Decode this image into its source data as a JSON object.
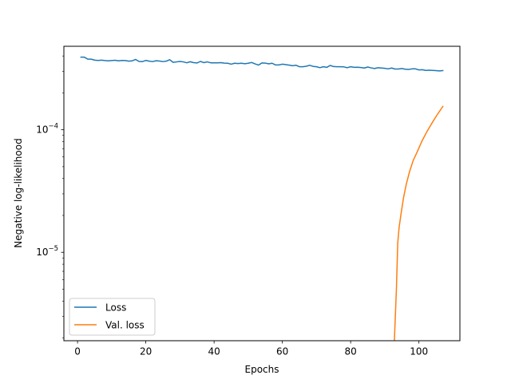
{
  "chart_data": {
    "type": "line",
    "xlabel": "Epochs",
    "ylabel": "Negative log-likelihood",
    "xlim": [
      -4,
      112
    ],
    "ylim": [
      1.9e-06,
      0.00048
    ],
    "yscale": "log",
    "grid": false,
    "legend_position": "lower-left",
    "x_ticks": [
      0,
      20,
      40,
      60,
      80,
      100
    ],
    "x_tick_labels": [
      "0",
      "20",
      "40",
      "60",
      "80",
      "100"
    ],
    "y_ticks": [
      1e-05,
      0.0001
    ],
    "y_tick_labels": [
      {
        "base": "10",
        "exp": "−5"
      },
      {
        "base": "10",
        "exp": "−4"
      }
    ],
    "series": [
      {
        "name": "Loss",
        "color": "#1f77b4",
        "x": [
          1,
          2,
          3,
          4,
          5,
          6,
          7,
          8,
          9,
          10,
          11,
          12,
          13,
          14,
          15,
          16,
          17,
          18,
          19,
          20,
          21,
          22,
          23,
          24,
          25,
          26,
          27,
          28,
          29,
          30,
          31,
          32,
          33,
          34,
          35,
          36,
          37,
          38,
          39,
          40,
          41,
          42,
          43,
          44,
          45,
          46,
          47,
          48,
          49,
          50,
          51,
          52,
          53,
          54,
          55,
          56,
          57,
          58,
          59,
          60,
          61,
          62,
          63,
          64,
          65,
          66,
          67,
          68,
          69,
          70,
          71,
          72,
          73,
          74,
          75,
          76,
          77,
          78,
          79,
          80,
          81,
          82,
          83,
          84,
          85,
          86,
          87,
          88,
          89,
          90,
          91,
          92,
          93,
          94,
          95,
          96,
          97,
          98,
          99,
          100,
          101,
          102,
          103,
          104,
          105,
          106,
          107
        ],
        "values": [
          0.000391,
          0.000391,
          0.000377,
          0.000377,
          0.00037,
          0.000368,
          0.00037,
          0.000367,
          0.000365,
          0.000367,
          0.000369,
          0.000365,
          0.000368,
          0.000367,
          0.000363,
          0.000365,
          0.000375,
          0.000361,
          0.00036,
          0.000368,
          0.000363,
          0.00036,
          0.000366,
          0.000364,
          0.00036,
          0.000363,
          0.000373,
          0.000355,
          0.000358,
          0.000361,
          0.000358,
          0.000352,
          0.000359,
          0.000353,
          0.000351,
          0.000361,
          0.000353,
          0.000358,
          0.000352,
          0.000352,
          0.000352,
          0.000353,
          0.00035,
          0.000349,
          0.000343,
          0.000349,
          0.000347,
          0.000349,
          0.000346,
          0.000349,
          0.000354,
          0.000345,
          0.000337,
          0.000351,
          0.00035,
          0.000345,
          0.000349,
          0.000338,
          0.000338,
          0.000343,
          0.00034,
          0.000337,
          0.000333,
          0.000336,
          0.000327,
          0.000327,
          0.00033,
          0.000336,
          0.000329,
          0.000327,
          0.000321,
          0.000327,
          0.000323,
          0.000335,
          0.000328,
          0.000327,
          0.000327,
          0.000326,
          0.000321,
          0.000327,
          0.000323,
          0.000324,
          0.000322,
          0.000319,
          0.000325,
          0.00032,
          0.000316,
          0.000321,
          0.000319,
          0.000317,
          0.000314,
          0.000319,
          0.000313,
          0.000313,
          0.000316,
          0.000312,
          0.000311,
          0.000314,
          0.000314,
          0.000308,
          0.000309,
          0.000305,
          0.000306,
          0.000305,
          0.000304,
          0.000302,
          0.000304
        ]
      },
      {
        "name": "Val. loss",
        "color": "#ff7f0e",
        "x": [
          92.8,
          93,
          93.4,
          93.8,
          94.2,
          94.8,
          95.5,
          96.3,
          97.2,
          98.3,
          99.5,
          100.8,
          102.2,
          103.7,
          105.3,
          107
        ],
        "values": [
          1.9e-06,
          2.6e-06,
          5e-06,
          1.2e-05,
          1.6e-05,
          2.1e-05,
          2.8e-05,
          3.6e-05,
          4.5e-05,
          5.6e-05,
          6.6e-05,
          8e-05,
          9.5e-05,
          0.000112,
          0.000132,
          0.000155
        ]
      }
    ]
  }
}
